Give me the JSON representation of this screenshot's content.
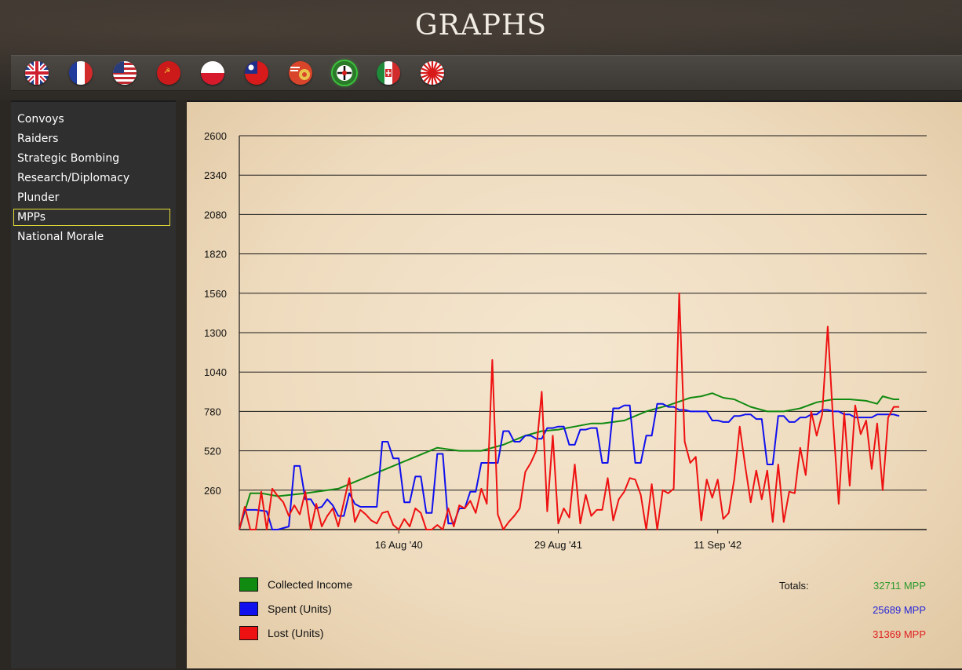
{
  "title": "GRAPHS",
  "flags": [
    {
      "name": "uk-flag-icon",
      "colors": [
        "#1f3b8c",
        "#ffffff",
        "#cf2030"
      ]
    },
    {
      "name": "france-flag-icon",
      "colors": [
        "#1f3b9c",
        "#ffffff",
        "#d12b2b"
      ]
    },
    {
      "name": "usa-flag-icon",
      "colors": [
        "#2a3d7a",
        "#ffffff",
        "#c1272d"
      ]
    },
    {
      "name": "ussr-flag-icon",
      "colors": [
        "#cc1a1a",
        "#f2d23a"
      ]
    },
    {
      "name": "poland-flag-icon",
      "colors": [
        "#ffffff",
        "#d61a2b"
      ]
    },
    {
      "name": "china-flag-icon",
      "colors": [
        "#d81a1a",
        "#1e2f8a",
        "#ffffff"
      ]
    },
    {
      "name": "raf-roundel-icon",
      "colors": [
        "#d9452a",
        "#e8c24a",
        "#ffffff"
      ]
    },
    {
      "name": "selected-country-roundel-icon",
      "colors": [
        "#2a7a2a",
        "#ffffff",
        "#d81a1a"
      ]
    },
    {
      "name": "italy-flag-icon",
      "colors": [
        "#1f8a3a",
        "#ffffff",
        "#d12b2b"
      ]
    },
    {
      "name": "japan-flag-icon",
      "colors": [
        "#ffffff",
        "#d81a1a"
      ]
    }
  ],
  "sidebar": {
    "items": [
      {
        "label": "Convoys"
      },
      {
        "label": "Raiders"
      },
      {
        "label": "Strategic Bombing"
      },
      {
        "label": "Research/Diplomacy"
      },
      {
        "label": "Plunder"
      },
      {
        "label": "MPPs",
        "active": true
      },
      {
        "label": "National Morale"
      }
    ]
  },
  "legend": {
    "totals_label": "Totals:",
    "items": [
      {
        "label": "Collected Income",
        "color": "#118a11",
        "total": "32711 MPP",
        "total_color": "#2c9a2c"
      },
      {
        "label": "Spent (Units)",
        "color": "#1010ee",
        "total": "25689 MPP",
        "total_color": "#2626d8"
      },
      {
        "label": "Lost (Units)",
        "color": "#ee1111",
        "total": "31369 MPP",
        "total_color": "#e02020"
      }
    ]
  },
  "chart_data": {
    "type": "line",
    "ylim": [
      0,
      2600
    ],
    "yticks": [
      260,
      520,
      780,
      1040,
      1300,
      1560,
      1820,
      2080,
      2340,
      2600
    ],
    "x_tick_labels": [
      {
        "label": "16 Aug '40",
        "turn": 29
      },
      {
        "label": "29 Aug '41",
        "turn": 58
      },
      {
        "label": "11 Sep '42",
        "turn": 87
      }
    ],
    "x_range": [
      0,
      125
    ],
    "grid": true,
    "series": [
      {
        "name": "Collected Income",
        "color": "#118a11",
        "x": [
          0,
          2,
          4,
          7,
          12,
          18,
          22,
          28,
          32,
          36,
          40,
          44,
          48,
          52,
          55,
          58,
          61,
          64,
          66,
          70,
          74,
          78,
          82,
          84,
          86,
          88,
          90,
          93,
          96,
          99,
          102,
          105,
          108,
          111,
          114,
          116,
          117,
          119,
          120
        ],
        "y": [
          0,
          240,
          240,
          220,
          240,
          270,
          330,
          420,
          480,
          540,
          520,
          520,
          560,
          620,
          650,
          660,
          680,
          700,
          700,
          720,
          780,
          820,
          870,
          880,
          900,
          870,
          860,
          810,
          780,
          780,
          800,
          840,
          860,
          860,
          850,
          830,
          880,
          860,
          860
        ]
      },
      {
        "name": "Spent (Units)",
        "color": "#1010ee",
        "x": [
          0,
          1,
          3,
          5,
          6,
          7,
          9,
          10,
          11,
          12,
          13,
          14,
          15,
          16,
          17,
          18,
          19,
          20,
          21,
          22,
          23,
          24,
          25,
          26,
          27,
          28,
          29,
          30,
          31,
          32,
          33,
          34,
          35,
          36,
          37,
          38,
          39,
          40,
          41,
          42,
          43,
          44,
          45,
          46,
          47,
          48,
          49,
          50,
          51,
          52,
          53,
          54,
          55,
          56,
          57,
          58,
          59,
          60,
          61,
          62,
          63,
          64,
          65,
          66,
          67,
          68,
          69,
          70,
          71,
          72,
          73,
          74,
          75,
          76,
          77,
          78,
          79,
          80,
          81,
          82,
          83,
          84,
          85,
          86,
          87,
          88,
          89,
          90,
          91,
          92,
          93,
          94,
          95,
          96,
          97,
          98,
          99,
          100,
          101,
          102,
          103,
          104,
          105,
          106,
          107,
          108,
          109,
          110,
          111,
          112,
          113,
          114,
          115,
          116,
          117,
          118,
          119,
          120
        ],
        "y": [
          0,
          130,
          130,
          120,
          0,
          0,
          20,
          420,
          420,
          200,
          200,
          140,
          150,
          200,
          160,
          90,
          90,
          240,
          170,
          150,
          150,
          150,
          150,
          580,
          580,
          470,
          470,
          180,
          180,
          350,
          350,
          110,
          110,
          500,
          500,
          40,
          40,
          140,
          140,
          250,
          250,
          440,
          440,
          440,
          440,
          650,
          650,
          580,
          580,
          620,
          620,
          600,
          600,
          670,
          670,
          680,
          680,
          560,
          560,
          660,
          660,
          670,
          670,
          440,
          440,
          800,
          800,
          820,
          820,
          440,
          440,
          620,
          620,
          830,
          830,
          810,
          810,
          790,
          790,
          780,
          780,
          780,
          780,
          720,
          720,
          710,
          710,
          750,
          750,
          760,
          760,
          730,
          730,
          430,
          430,
          750,
          750,
          710,
          710,
          740,
          740,
          760,
          760,
          790,
          790,
          780,
          780,
          760,
          760,
          740,
          740,
          740,
          740,
          760,
          760,
          760,
          760,
          750
        ]
      },
      {
        "name": "Lost (Units)",
        "color": "#ee1111",
        "x": [
          0,
          1,
          2,
          3,
          4,
          5,
          6,
          7,
          8,
          9,
          10,
          11,
          12,
          13,
          14,
          15,
          16,
          17,
          18,
          19,
          20,
          21,
          22,
          23,
          24,
          25,
          26,
          27,
          28,
          29,
          30,
          31,
          32,
          33,
          34,
          35,
          36,
          37,
          38,
          39,
          40,
          41,
          42,
          43,
          44,
          45,
          46,
          47,
          48,
          49,
          50,
          51,
          52,
          53,
          54,
          55,
          56,
          57,
          58,
          59,
          60,
          61,
          62,
          63,
          64,
          65,
          66,
          67,
          68,
          69,
          70,
          71,
          72,
          73,
          74,
          75,
          76,
          77,
          78,
          79,
          80,
          81,
          82,
          83,
          84,
          85,
          86,
          87,
          88,
          89,
          90,
          91,
          92,
          93,
          94,
          95,
          96,
          97,
          98,
          99,
          100,
          101,
          102,
          103,
          104,
          105,
          106,
          107,
          108,
          109,
          110,
          111,
          112,
          113,
          114,
          115,
          116,
          117,
          118,
          119,
          120
        ],
        "y": [
          0,
          150,
          0,
          0,
          250,
          0,
          270,
          220,
          180,
          90,
          160,
          100,
          250,
          0,
          170,
          20,
          90,
          140,
          20,
          180,
          340,
          50,
          130,
          100,
          60,
          40,
          110,
          120,
          30,
          0,
          70,
          20,
          140,
          110,
          0,
          0,
          30,
          0,
          140,
          20,
          160,
          140,
          190,
          110,
          270,
          170,
          1120,
          100,
          0,
          50,
          90,
          140,
          380,
          440,
          520,
          910,
          120,
          620,
          40,
          140,
          80,
          430,
          40,
          230,
          90,
          130,
          130,
          340,
          60,
          200,
          250,
          340,
          330,
          230,
          0,
          300,
          0,
          260,
          240,
          270,
          1560,
          580,
          440,
          480,
          60,
          330,
          210,
          330,
          70,
          110,
          330,
          680,
          420,
          180,
          390,
          200,
          390,
          50,
          430,
          50,
          250,
          240,
          540,
          360,
          780,
          620,
          760,
          1340,
          700,
          170,
          770,
          290,
          820,
          630,
          720,
          400,
          700,
          260,
          740,
          810,
          810
        ]
      }
    ]
  }
}
